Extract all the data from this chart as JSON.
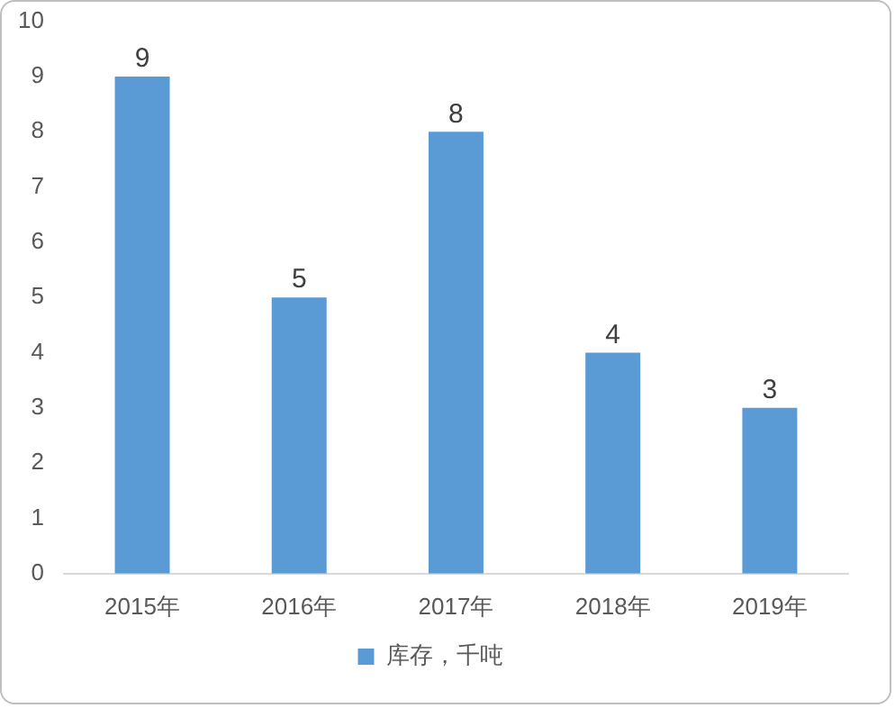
{
  "chart_data": {
    "type": "bar",
    "categories": [
      "2015年",
      "2016年",
      "2017年",
      "2018年",
      "2019年"
    ],
    "series": [
      {
        "name": "库存，千吨",
        "color": "#5b9bd5",
        "values": [
          9,
          5,
          8,
          4,
          3
        ]
      }
    ],
    "ylim": [
      0,
      10
    ],
    "yticks": [
      0,
      1,
      2,
      3,
      4,
      5,
      6,
      7,
      8,
      9,
      10
    ],
    "grid": false,
    "legend": "bottom",
    "data_labels": true
  }
}
